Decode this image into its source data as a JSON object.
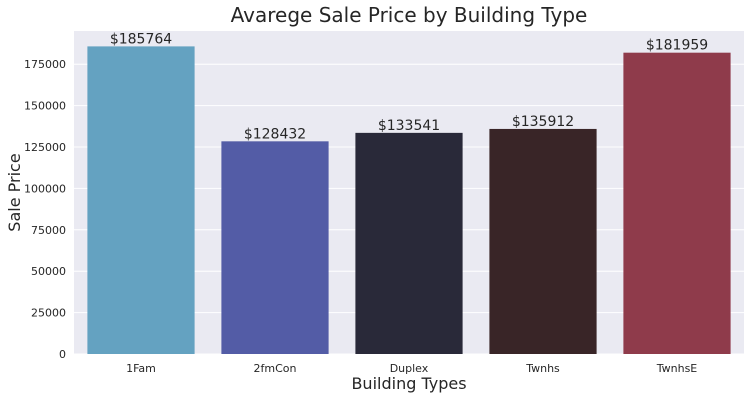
{
  "chart_data": {
    "type": "bar",
    "title": "Avarege Sale Price by Building Type",
    "xlabel": "Building Types",
    "ylabel": "Sale Price",
    "categories": [
      "1Fam",
      "2fmCon",
      "Duplex",
      "Twnhs",
      "TwnhsE"
    ],
    "values": [
      185764,
      128432,
      133541,
      135912,
      181959
    ],
    "data_labels": [
      "$185764",
      "$128432",
      "$133541",
      "$135912",
      "$181959"
    ],
    "bar_colors": [
      "#64a2c1",
      "#535ca6",
      "#292939",
      "#392527",
      "#8f3b4b"
    ],
    "yticks": [
      0,
      25000,
      50000,
      75000,
      100000,
      125000,
      150000,
      175000
    ],
    "ytick_labels": [
      "0",
      "25000",
      "50000",
      "75000",
      "100000",
      "125000",
      "150000",
      "175000"
    ],
    "ylim": [
      0,
      195055
    ],
    "grid": true,
    "background_color": "#eaeaf2",
    "grid_color": "#ffffff"
  }
}
